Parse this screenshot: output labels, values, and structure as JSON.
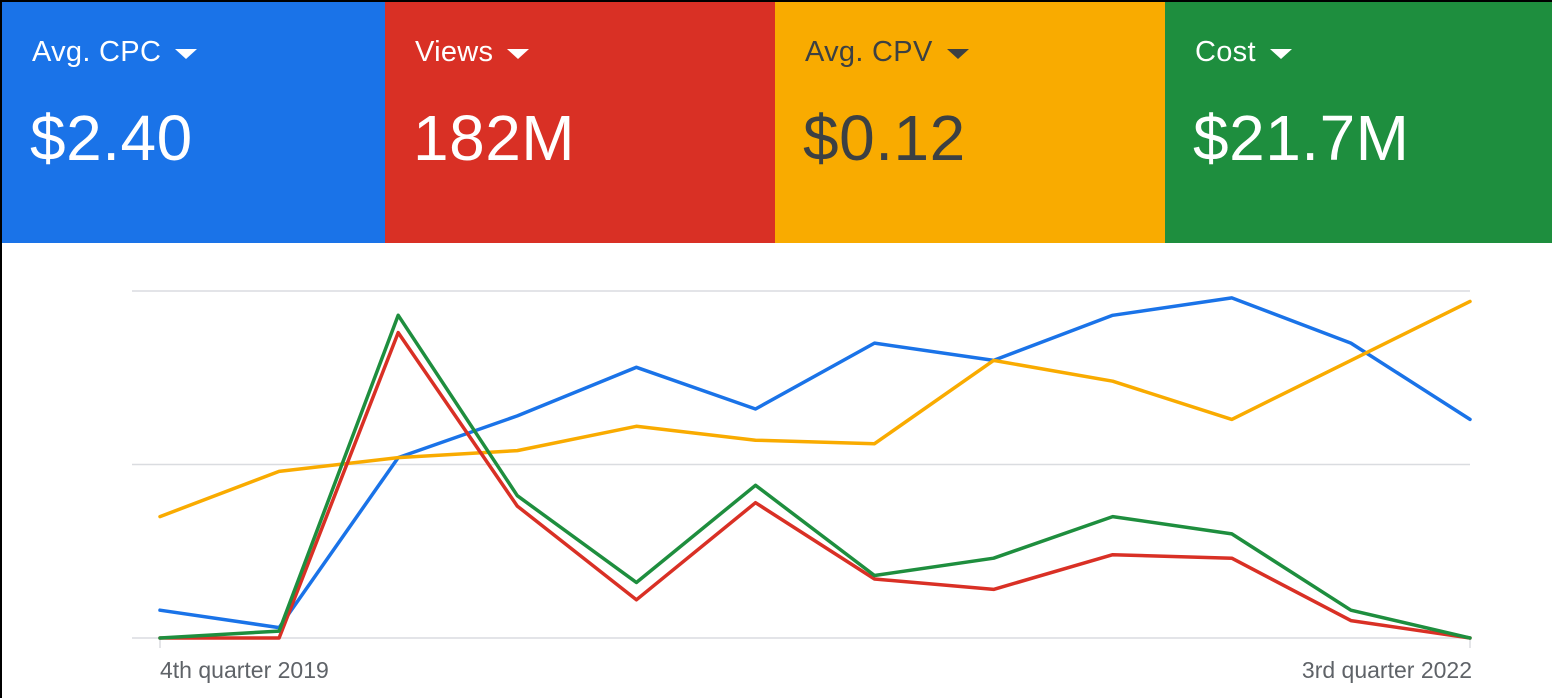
{
  "scorecards": [
    {
      "label": "Avg. CPC",
      "value": "$2.40",
      "bg": "#1a73e8",
      "fg": "#ffffff",
      "series_color": "#1a73e8"
    },
    {
      "label": "Views",
      "value": "182M",
      "bg": "#d93025",
      "fg": "#ffffff",
      "series_color": "#d93025"
    },
    {
      "label": "Avg. CPV",
      "value": "$0.12",
      "bg": "#f9ab00",
      "fg": "#3c4043",
      "series_color": "#f9ab00"
    },
    {
      "label": "Cost",
      "value": "$21.7M",
      "bg": "#1e8e3e",
      "fg": "#ffffff",
      "series_color": "#1e8e3e"
    }
  ],
  "chart_data": {
    "type": "line",
    "x_start_label": "4th quarter 2019",
    "x_end_label": "3rd quarter 2022",
    "points": 12,
    "grid": true,
    "gridline_count": 3,
    "series": [
      {
        "metric": "Avg. CPC",
        "color": "#1a73e8",
        "values": [
          0.08,
          0.03,
          0.52,
          0.64,
          0.78,
          0.66,
          0.85,
          0.8,
          0.93,
          0.98,
          0.85,
          0.63
        ]
      },
      {
        "metric": "Avg. CPV",
        "color": "#f9ab00",
        "values": [
          0.35,
          0.48,
          0.52,
          0.54,
          0.61,
          0.57,
          0.56,
          0.8,
          0.74,
          0.63,
          0.8,
          0.97
        ]
      },
      {
        "metric": "Views",
        "color": "#d93025",
        "values": [
          0.0,
          0.0,
          0.88,
          0.38,
          0.11,
          0.39,
          0.17,
          0.14,
          0.24,
          0.23,
          0.05,
          0.0
        ]
      },
      {
        "metric": "Cost",
        "color": "#1e8e3e",
        "values": [
          0.0,
          0.02,
          0.93,
          0.41,
          0.16,
          0.44,
          0.18,
          0.23,
          0.35,
          0.3,
          0.08,
          0.0
        ]
      }
    ]
  }
}
